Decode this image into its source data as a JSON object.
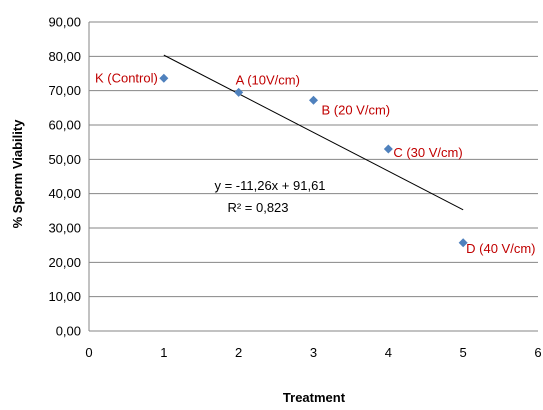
{
  "chart_data": {
    "type": "scatter",
    "xlabel": "Treatment",
    "ylabel": "% Sperm Viability",
    "xlim": [
      0,
      6
    ],
    "ylim": [
      0,
      90
    ],
    "x_ticks": [
      "0",
      "1",
      "2",
      "3",
      "4",
      "5",
      "6"
    ],
    "y_ticks": [
      "0,00",
      "10,00",
      "20,00",
      "30,00",
      "40,00",
      "50,00",
      "60,00",
      "70,00",
      "80,00",
      "90,00"
    ],
    "grid": "horizontal",
    "marker_color": "#4f81bd",
    "label_color": "#c00000",
    "points": [
      {
        "x": 1,
        "y": 73.6,
        "label": "K (Control)"
      },
      {
        "x": 2,
        "y": 69.5,
        "label": "A (10V/cm)"
      },
      {
        "x": 3,
        "y": 67.2,
        "label": "B (20 V/cm)"
      },
      {
        "x": 4,
        "y": 53.0,
        "label": "C (30 V/cm)"
      },
      {
        "x": 5,
        "y": 25.7,
        "label": "D (40 V/cm)"
      }
    ],
    "trendline": {
      "slope": -11.26,
      "intercept": 91.61,
      "x_range": [
        1,
        5
      ],
      "equation": "y = -11,26x + 91,61",
      "r_squared": "R² = 0,823"
    }
  }
}
